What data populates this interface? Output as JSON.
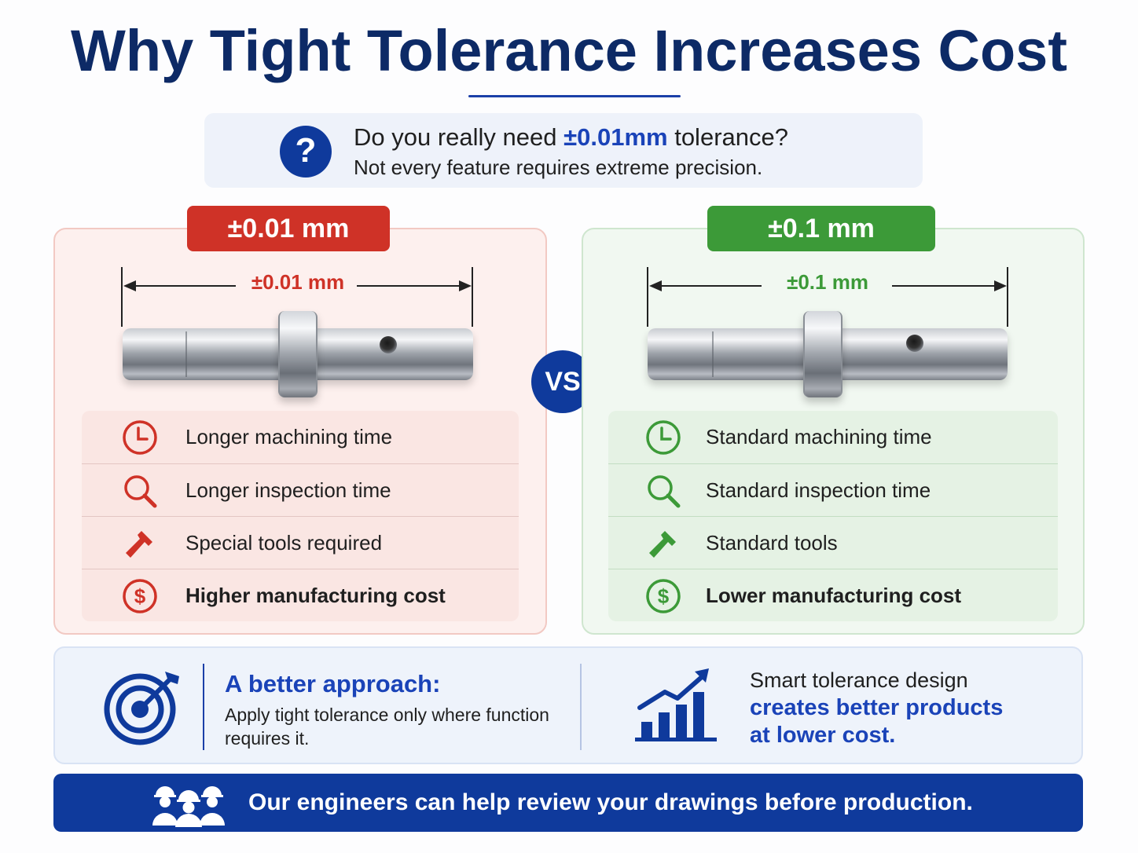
{
  "title": "Why Tight Tolerance Increases Cost",
  "question": {
    "line1_pre": "Do you really need ",
    "line1_highlight": "±0.01mm",
    "line1_post": " tolerance?",
    "line2": "Not every feature requires extreme precision.",
    "icon": "question-circle-icon"
  },
  "left": {
    "tag": "±0.01 mm",
    "dimension_label": "±0.01 mm",
    "color": "#cf3227",
    "items": [
      {
        "icon": "clock-icon",
        "label": "Longer machining time",
        "bold": false
      },
      {
        "icon": "magnifier-icon",
        "label": "Longer inspection time",
        "bold": false
      },
      {
        "icon": "tool-icon",
        "label": "Special tools required",
        "bold": false
      },
      {
        "icon": "dollar-icon",
        "label": "Higher manufacturing cost",
        "bold": true
      }
    ]
  },
  "vs": "VS",
  "right": {
    "tag": "±0.1 mm",
    "dimension_label": "±0.1 mm",
    "color": "#3c9a38",
    "items": [
      {
        "icon": "clock-icon",
        "label": "Standard machining time",
        "bold": false
      },
      {
        "icon": "magnifier-icon",
        "label": "Standard inspection time",
        "bold": false
      },
      {
        "icon": "tool-icon",
        "label": "Standard tools",
        "bold": false
      },
      {
        "icon": "dollar-icon",
        "label": "Lower manufacturing cost",
        "bold": true
      }
    ]
  },
  "approach": {
    "title": "A better approach:",
    "body": "Apply tight tolerance only where function requires it.",
    "smart_line1": "Smart tolerance design",
    "smart_line2": "creates better products",
    "smart_line3": "at lower cost."
  },
  "footer": {
    "text": "Our engineers can help review your drawings before production."
  },
  "colors": {
    "navy": "#0d2a66",
    "accent_blue": "#1a43b8",
    "red": "#cf3227",
    "green": "#3c9a38"
  }
}
